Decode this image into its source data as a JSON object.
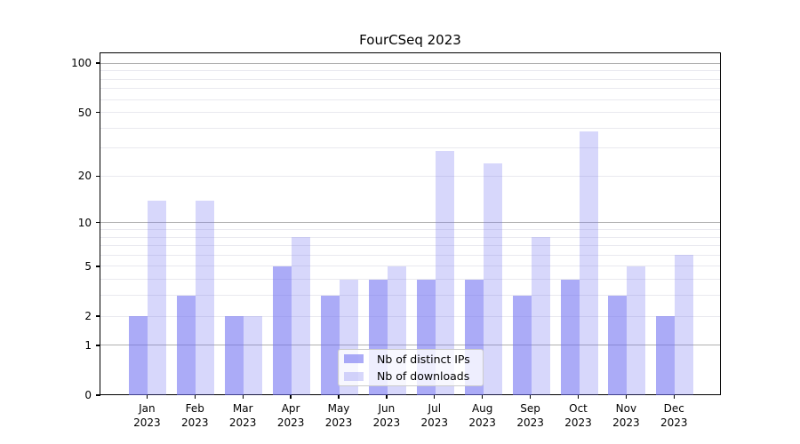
{
  "chart_data": {
    "type": "bar",
    "title": "FourCSeq 2023",
    "categories": [
      "Jan",
      "Feb",
      "Mar",
      "Apr",
      "May",
      "Jun",
      "Jul",
      "Aug",
      "Sep",
      "Oct",
      "Nov",
      "Dec"
    ],
    "xtick_year": "2023",
    "series": [
      {
        "name": "Nb of distinct IPs",
        "color": "rgba(110,110,242,0.58)",
        "values": [
          2,
          3,
          2,
          5,
          3,
          4,
          4,
          4,
          3,
          4,
          3,
          2
        ]
      },
      {
        "name": "Nb of downloads",
        "color": "rgba(110,110,242,0.28)",
        "values": [
          14,
          14,
          2,
          8,
          4,
          5,
          29,
          24,
          8,
          38,
          5,
          6
        ]
      }
    ],
    "xlabel": "",
    "ylabel": "",
    "yscale": "log1p",
    "ylim": [
      0,
      114
    ],
    "ytick_values": [
      0,
      1,
      2,
      5,
      10,
      20,
      50,
      100
    ],
    "ytick_labels": [
      "0",
      "1",
      "2",
      "5",
      "10",
      "20",
      "50",
      "100"
    ],
    "major_gridlines": [
      1,
      10,
      100
    ],
    "minor_gridlines": [
      2,
      3,
      4,
      5,
      6,
      7,
      8,
      9,
      20,
      30,
      40,
      50,
      60,
      70,
      80,
      90
    ],
    "grid_on": true,
    "legend_position": "lower center",
    "colors": {
      "major_grid": "#b0b0b0",
      "minor_grid": "#e9e9ef",
      "spine": "#000000",
      "background": "#ffffff"
    }
  }
}
